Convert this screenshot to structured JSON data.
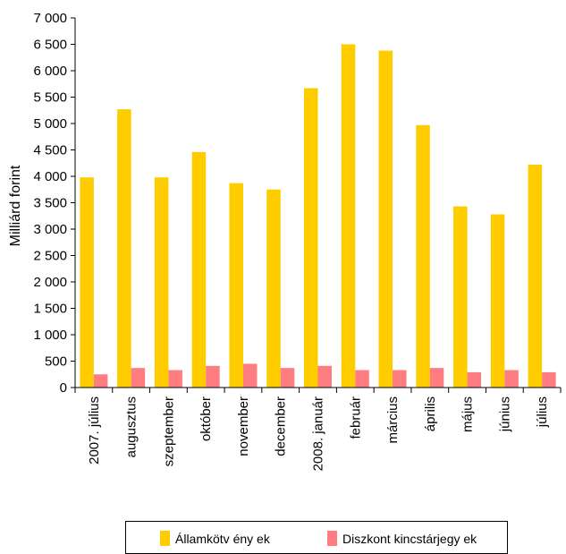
{
  "chart_data": {
    "type": "bar",
    "title": "",
    "xlabel": "",
    "ylabel": "Milliárd forint",
    "ylim": [
      0,
      7000
    ],
    "yticks": [
      0,
      500,
      1000,
      1500,
      2000,
      2500,
      3000,
      3500,
      4000,
      4500,
      5000,
      5500,
      6000,
      6500,
      7000
    ],
    "ytick_labels": [
      "0",
      "500",
      "1 000",
      "1 500",
      "2 000",
      "2 500",
      "3 000",
      "3 500",
      "4 000",
      "4 500",
      "5 000",
      "5 500",
      "6 000",
      "6 500",
      "7 000"
    ],
    "grid": false,
    "legend_position": "bottom",
    "categories": [
      "2007. július",
      "augusztus",
      "szeptember",
      "október",
      "november",
      "december",
      "2008. január",
      "február",
      "március",
      "április",
      "május",
      "június",
      "július"
    ],
    "series": [
      {
        "name": "Államkötv ény ek",
        "color": "#FFCC00",
        "values": [
          3980,
          5270,
          3980,
          4460,
          3870,
          3750,
          5670,
          6500,
          6380,
          4970,
          3430,
          3280,
          4220
        ]
      },
      {
        "name": "Diszkont kincstárjegy ek",
        "color": "#FF7C80",
        "values": [
          250,
          370,
          330,
          410,
          450,
          370,
          410,
          330,
          330,
          370,
          290,
          330,
          290
        ]
      }
    ]
  }
}
